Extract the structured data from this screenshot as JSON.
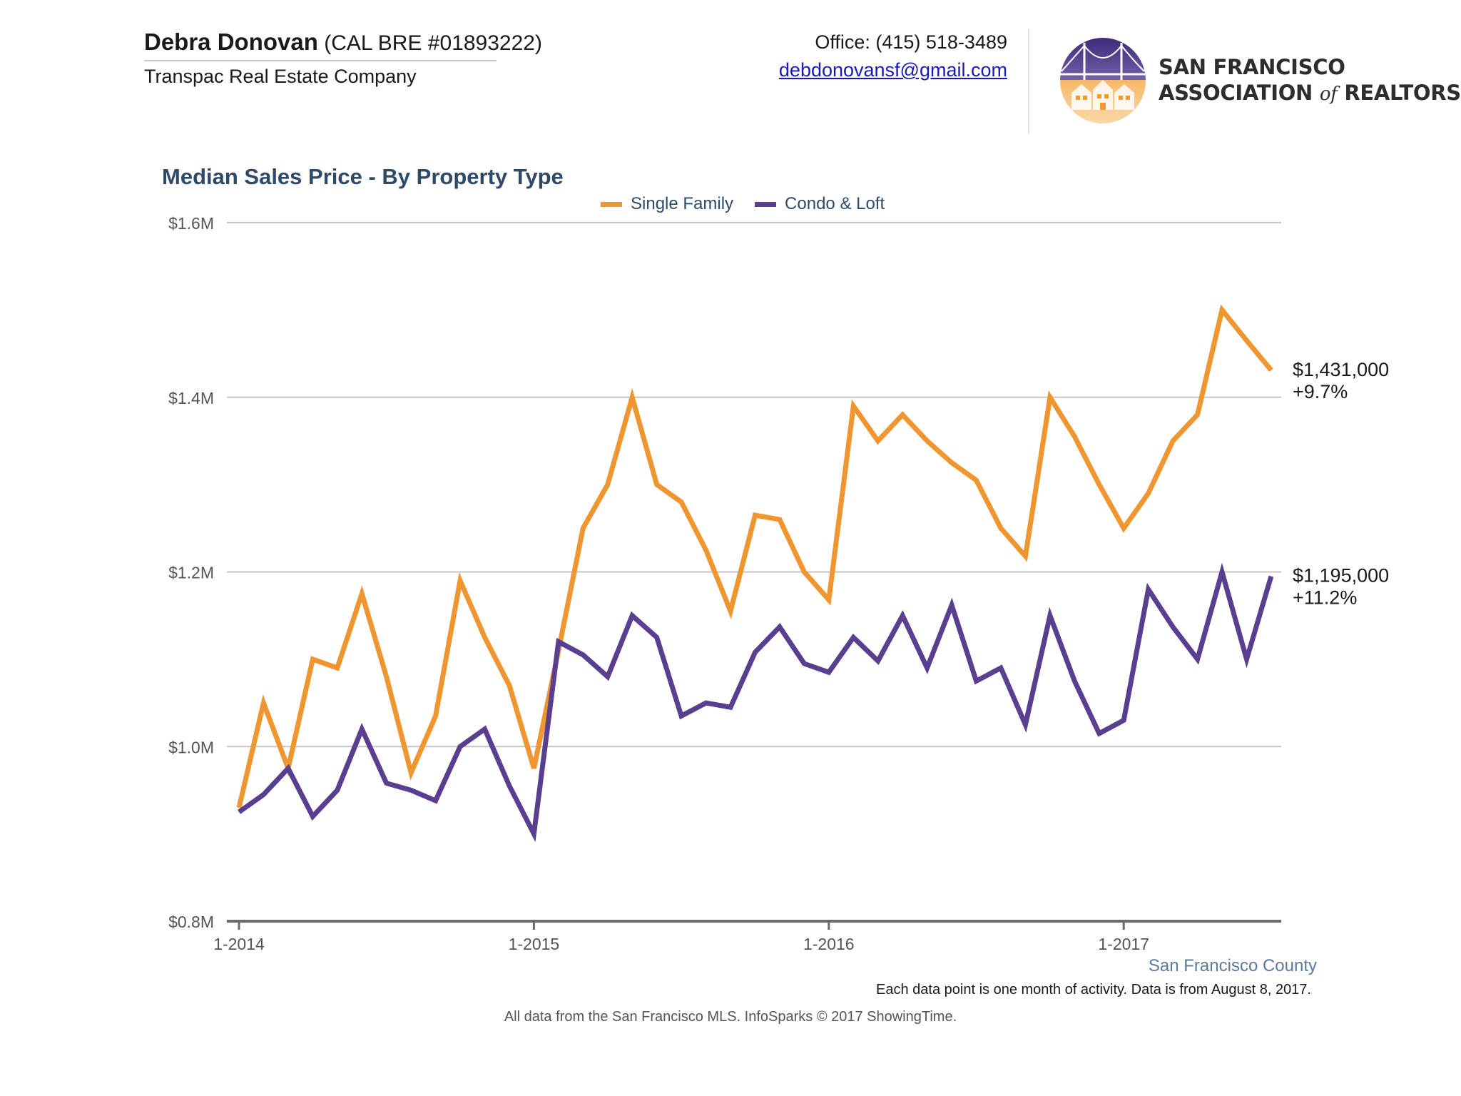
{
  "header": {
    "agent_name": "Debra Donovan",
    "license": "(CAL BRE #01893222)",
    "company": "Transpac Real Estate Company",
    "office": "Office: (415) 518-3489",
    "email": "debdonovansf@gmail.com",
    "association_line1": "SAN FRANCISCO",
    "association_line2_a": "ASSOCIATION",
    "association_line2_of": "of",
    "association_line2_b": "REALTORS",
    "association_mark": "®"
  },
  "colors": {
    "single_family": "#ef9630",
    "condo_loft": "#5a3f90",
    "grid": "#c6c6c6",
    "axis": "#6b6b6b",
    "title": "#2f4a66"
  },
  "icons": {
    "logo": "golden-gate-bridge-houses-logo"
  },
  "chart_data": {
    "type": "line",
    "title": "Median Sales Price - By Property Type",
    "x": [
      "1-2014",
      "2-2014",
      "3-2014",
      "4-2014",
      "5-2014",
      "6-2014",
      "7-2014",
      "8-2014",
      "9-2014",
      "10-2014",
      "11-2014",
      "12-2014",
      "1-2015",
      "2-2015",
      "3-2015",
      "4-2015",
      "5-2015",
      "6-2015",
      "7-2015",
      "8-2015",
      "9-2015",
      "10-2015",
      "11-2015",
      "12-2015",
      "1-2016",
      "2-2016",
      "3-2016",
      "4-2016",
      "5-2016",
      "6-2016",
      "7-2016",
      "8-2016",
      "9-2016",
      "10-2016",
      "11-2016",
      "12-2016",
      "1-2017",
      "2-2017",
      "3-2017",
      "4-2017",
      "5-2017",
      "6-2017",
      "7-2017"
    ],
    "x_ticks": [
      "1-2014",
      "1-2015",
      "1-2016",
      "1-2017"
    ],
    "y_ticks": [
      "$0.8M",
      "$1.0M",
      "$1.2M",
      "$1.4M",
      "$1.6M"
    ],
    "ylim": [
      800000,
      1600000
    ],
    "grid": "horizontal",
    "legend_position": "top-center",
    "series": [
      {
        "name": "Single Family",
        "color_key": "single_family",
        "values": [
          930000,
          1050000,
          975000,
          1100000,
          1090000,
          1175000,
          1080000,
          970000,
          1035000,
          1190000,
          1125000,
          1070000,
          975000,
          1110000,
          1250000,
          1300000,
          1400000,
          1300000,
          1280000,
          1225000,
          1155000,
          1265000,
          1260000,
          1200000,
          1168000,
          1390000,
          1350000,
          1380000,
          1350000,
          1325000,
          1305000,
          1250000,
          1218000,
          1400000,
          1355000,
          1300000,
          1250000,
          1290000,
          1350000,
          1380000,
          1500000,
          1465000,
          1431000
        ],
        "end_label": "$1,431,000",
        "end_change": "+9.7%"
      },
      {
        "name": "Condo & Loft",
        "color_key": "condo_loft",
        "values": [
          925000,
          945000,
          975000,
          920000,
          950000,
          1020000,
          958000,
          950000,
          938000,
          1000000,
          1020000,
          955000,
          900000,
          1120000,
          1105000,
          1080000,
          1150000,
          1125000,
          1035000,
          1050000,
          1045000,
          1108000,
          1137000,
          1095000,
          1085000,
          1125000,
          1098000,
          1150000,
          1090000,
          1162000,
          1075000,
          1090000,
          1025000,
          1150000,
          1075000,
          1015000,
          1030000,
          1180000,
          1137000,
          1100000,
          1200000,
          1100000,
          1195000
        ],
        "end_label": "$1,195,000",
        "end_change": "+11.2%"
      }
    ],
    "region_label": "San Francisco County",
    "footnote": "Each data point is one month of activity. Data is from August 8, 2017.",
    "source": "All data from the San Francisco MLS. InfoSparks © 2017 ShowingTime."
  }
}
